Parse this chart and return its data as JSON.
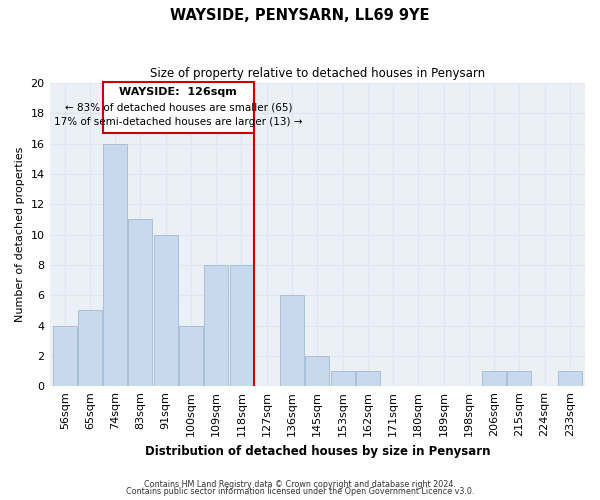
{
  "title": "WAYSIDE, PENYSARN, LL69 9YE",
  "subtitle": "Size of property relative to detached houses in Penysarn",
  "xlabel": "Distribution of detached houses by size in Penysarn",
  "ylabel": "Number of detached properties",
  "bar_labels": [
    "56sqm",
    "65sqm",
    "74sqm",
    "83sqm",
    "91sqm",
    "100sqm",
    "109sqm",
    "118sqm",
    "127sqm",
    "136sqm",
    "145sqm",
    "153sqm",
    "162sqm",
    "171sqm",
    "180sqm",
    "189sqm",
    "198sqm",
    "206sqm",
    "215sqm",
    "224sqm",
    "233sqm"
  ],
  "bar_values": [
    4,
    5,
    16,
    11,
    10,
    4,
    8,
    8,
    0,
    6,
    2,
    1,
    1,
    0,
    0,
    0,
    0,
    1,
    1,
    0,
    1
  ],
  "bar_color": "#c8d9ed",
  "bar_edge_color": "#a8c0d8",
  "ylim": [
    0,
    20
  ],
  "yticks": [
    0,
    2,
    4,
    6,
    8,
    10,
    12,
    14,
    16,
    18,
    20
  ],
  "annotation_title": "WAYSIDE:  126sqm",
  "annotation_line1": "← 83% of detached houses are smaller (65)",
  "annotation_line2": "17% of semi-detached houses are larger (13) →",
  "footer_line1": "Contains HM Land Registry data © Crown copyright and database right 2024.",
  "footer_line2": "Contains public sector information licensed under the Open Government Licence v3.0.",
  "grid_color": "#dce8f0",
  "bg_color": "#eaf0f6",
  "annotation_box_facecolor": "#ffffff",
  "annotation_box_edgecolor": "#cc0000",
  "vline_color": "#cc0000",
  "vline_x_index": 8
}
